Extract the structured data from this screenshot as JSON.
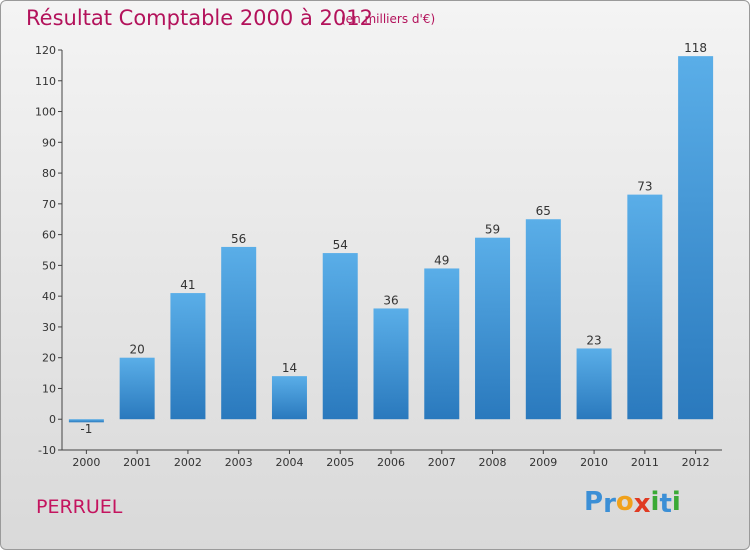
{
  "chart_data": {
    "type": "bar",
    "title": "Résultat Comptable 2000 à 2012",
    "subtitle": "(en milliers d'€)",
    "categories": [
      "2000",
      "2001",
      "2002",
      "2003",
      "2004",
      "2005",
      "2006",
      "2007",
      "2008",
      "2009",
      "2010",
      "2011",
      "2012"
    ],
    "values": [
      -1,
      20,
      41,
      56,
      14,
      54,
      36,
      49,
      59,
      65,
      23,
      73,
      118
    ],
    "data_labels": [
      "-1",
      "20",
      "41",
      "56",
      "14",
      "54",
      "36",
      "49",
      "59",
      "65",
      "23",
      "73",
      "118"
    ],
    "ylim": [
      -10,
      120
    ],
    "yticks": [
      -10,
      0,
      10,
      20,
      30,
      40,
      50,
      60,
      70,
      80,
      90,
      100,
      110,
      120
    ],
    "xlabel": "",
    "ylabel": "",
    "grid": false,
    "bar_color": "#3a93d8"
  },
  "footer": {
    "town": "PERRUEL",
    "logo_letters": [
      "P",
      "r",
      "o",
      "x",
      "i",
      "t",
      "i"
    ],
    "logo_colors": [
      "#3b8fd6",
      "#3b8fd6",
      "#f0a11b",
      "#e03a22",
      "#3aaa35",
      "#3b8fd6",
      "#3aaa35"
    ]
  }
}
